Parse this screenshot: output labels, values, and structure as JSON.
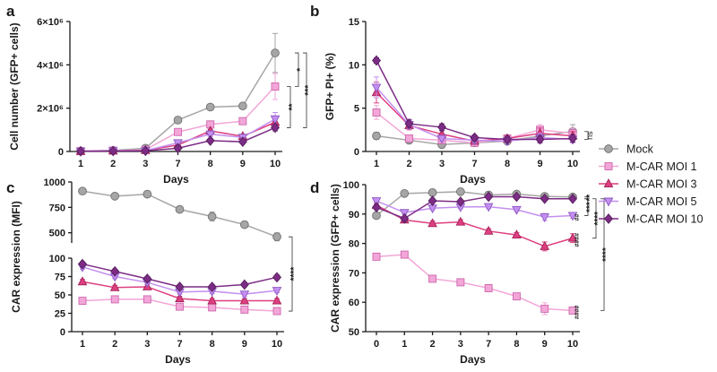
{
  "styles": {
    "Mock": {
      "fill": "#a6a6a6",
      "stroke": "#6f6f6f",
      "line": "#a6a6a6",
      "marker": "circle"
    },
    "M-CAR MOI 1": {
      "fill": "#f3a6d8",
      "stroke": "#cc66ad",
      "line": "#f3a6d8",
      "marker": "square"
    },
    "M-CAR MOI 3": {
      "fill": "#de3f7f",
      "stroke": "#a3235c",
      "line": "#de3f7f",
      "marker": "triangle-up"
    },
    "M-CAR MOI 5": {
      "fill": "#c38ff0",
      "stroke": "#8e58c2",
      "line": "#c38ff0",
      "marker": "triangle-down"
    },
    "M-CAR MOI 10": {
      "fill": "#7d2c86",
      "stroke": "#551d5c",
      "line": "#7d2c86",
      "marker": "diamond"
    }
  },
  "legend": {
    "entries": [
      {
        "label": "Mock",
        "series": "Mock"
      },
      {
        "label": "M-CAR MOI 1",
        "series": "M-CAR MOI 1"
      },
      {
        "label": "M-CAR MOI 3",
        "series": "M-CAR MOI 3"
      },
      {
        "label": "M-CAR MOI 5",
        "series": "M-CAR MOI 5"
      },
      {
        "label": "M-CAR MOI 10",
        "series": "M-CAR MOI 10"
      }
    ]
  },
  "chart_data": [
    {
      "panel": "a",
      "type": "line",
      "xlabel": "Days",
      "ylabel": "Cell number (GFP+ cells)",
      "categories": [
        "1",
        "2",
        "3",
        "7",
        "8",
        "9",
        "10"
      ],
      "ylim": [
        0,
        6000000
      ],
      "yticks": [
        0,
        2000000,
        4000000,
        6000000
      ],
      "ytick_labels": [
        "0",
        "2×10⁶",
        "4×10⁶",
        "6×10⁶"
      ],
      "series": [
        {
          "name": "Mock",
          "values": [
            20000,
            50000,
            150000,
            1450000,
            2050000,
            2100000,
            4550000
          ],
          "errors": [
            0,
            0,
            0,
            80000,
            60000,
            80000,
            900000
          ]
        },
        {
          "name": "M-CAR MOI 1",
          "values": [
            15000,
            40000,
            80000,
            900000,
            1250000,
            1400000,
            3000000
          ],
          "errors": [
            0,
            0,
            0,
            80000,
            80000,
            80000,
            600000
          ]
        },
        {
          "name": "M-CAR MOI 3",
          "values": [
            10000,
            30000,
            50000,
            300000,
            950000,
            700000,
            1350000
          ],
          "errors": [
            0,
            0,
            0,
            60000,
            80000,
            100000,
            200000
          ]
        },
        {
          "name": "M-CAR MOI 5",
          "values": [
            10000,
            30000,
            40000,
            400000,
            800000,
            650000,
            1500000
          ],
          "errors": [
            0,
            0,
            0,
            60000,
            100000,
            100000,
            300000
          ]
        },
        {
          "name": "M-CAR MOI 10",
          "values": [
            10000,
            20000,
            30000,
            150000,
            500000,
            450000,
            1100000
          ],
          "errors": [
            0,
            0,
            0,
            40000,
            60000,
            80000,
            150000
          ]
        }
      ],
      "annotations": [
        {
          "label": "**",
          "from_series": "M-CAR MOI 1",
          "to_series": "M-CAR MOI 10",
          "level": 0
        },
        {
          "label": "*",
          "from_series": "Mock",
          "to_series": "M-CAR MOI 1",
          "level": 1
        },
        {
          "label": "***",
          "from_series": "Mock",
          "to_series": "M-CAR MOI 10",
          "level": 2
        }
      ]
    },
    {
      "panel": "b",
      "type": "line",
      "xlabel": "Days",
      "ylabel": "GFP+ PI+ (%)",
      "categories": [
        "1",
        "2",
        "3",
        "7",
        "8",
        "9",
        "10"
      ],
      "ylim": [
        0,
        15
      ],
      "yticks": [
        0,
        5,
        10,
        15
      ],
      "ytick_labels": [
        "0",
        "5",
        "10",
        "15"
      ],
      "series": [
        {
          "name": "Mock",
          "values": [
            1.8,
            1.3,
            0.8,
            1.0,
            1.2,
            1.8,
            2.3
          ],
          "errors": [
            0.4,
            0.3,
            0.3,
            0.3,
            0.3,
            0.4,
            0.8
          ]
        },
        {
          "name": "M-CAR MOI 1",
          "values": [
            4.5,
            1.5,
            1.3,
            1.0,
            1.5,
            2.5,
            2.1
          ],
          "errors": [
            0.8,
            0.3,
            0.3,
            0.3,
            0.4,
            0.6,
            0.6
          ]
        },
        {
          "name": "M-CAR MOI 3",
          "values": [
            6.8,
            3.0,
            2.0,
            1.2,
            1.5,
            2.1,
            1.8
          ],
          "errors": [
            1.2,
            0.5,
            0.4,
            0.3,
            0.3,
            0.6,
            0.5
          ]
        },
        {
          "name": "M-CAR MOI 5",
          "values": [
            7.4,
            3.1,
            1.5,
            1.3,
            1.2,
            1.6,
            1.4
          ],
          "errors": [
            1.2,
            0.5,
            0.3,
            0.3,
            0.3,
            0.5,
            0.4
          ]
        },
        {
          "name": "M-CAR MOI 10",
          "values": [
            10.5,
            3.2,
            2.8,
            1.6,
            1.4,
            1.4,
            1.5
          ],
          "errors": [
            0.3,
            0.5,
            0.4,
            0.3,
            0.3,
            0.4,
            0.4
          ]
        }
      ],
      "annotations": [
        {
          "label": "ns",
          "from_series": "Mock",
          "to_series": "M-CAR MOI 5",
          "level": 0
        }
      ]
    },
    {
      "panel": "c",
      "type": "line",
      "xlabel": "Days",
      "ylabel": "CAR expression (MFI)",
      "categories": [
        "1",
        "2",
        "3",
        "7",
        "8",
        "9",
        "10"
      ],
      "broken_axis": {
        "lower": [
          0,
          100
        ],
        "upper": [
          400,
          1000
        ]
      },
      "yticks": [
        0,
        25,
        50,
        75,
        100,
        500,
        750,
        1000
      ],
      "ytick_labels": [
        "0",
        "25",
        "50",
        "75",
        "100",
        "500",
        "750",
        "1000"
      ],
      "series": [
        {
          "name": "Mock",
          "values": [
            910,
            860,
            880,
            730,
            660,
            580,
            460
          ],
          "errors": [
            15,
            15,
            15,
            30,
            45,
            30,
            40
          ]
        },
        {
          "name": "M-CAR MOI 1",
          "values": [
            42,
            44,
            44,
            34,
            33,
            30,
            28
          ],
          "errors": [
            2,
            2,
            2,
            3,
            3,
            3,
            3
          ]
        },
        {
          "name": "M-CAR MOI 3",
          "values": [
            68,
            60,
            61,
            45,
            42,
            42,
            42
          ],
          "errors": [
            3,
            3,
            3,
            3,
            3,
            3,
            3
          ]
        },
        {
          "name": "M-CAR MOI 5",
          "values": [
            88,
            75,
            67,
            54,
            55,
            51,
            56
          ],
          "errors": [
            3,
            3,
            3,
            3,
            3,
            3,
            3
          ]
        },
        {
          "name": "M-CAR MOI 10",
          "values": [
            92,
            82,
            72,
            61,
            61,
            64,
            74
          ],
          "errors": [
            3,
            3,
            3,
            3,
            3,
            3,
            3
          ]
        }
      ],
      "annotations": [
        {
          "label": "****",
          "from_series": "Mock",
          "to_series": "M-CAR MOI 1",
          "level": 0
        }
      ]
    },
    {
      "panel": "d",
      "type": "line",
      "xlabel": "Days",
      "ylabel": "CAR expression (GFP+ cells)",
      "categories": [
        "0",
        "1",
        "2",
        "3",
        "7",
        "8",
        "9",
        "10"
      ],
      "ylim": [
        50,
        100
      ],
      "yticks": [
        50,
        60,
        70,
        80,
        90,
        100
      ],
      "ytick_labels": [
        "50",
        "60",
        "70",
        "80",
        "90",
        "100"
      ],
      "series": [
        {
          "name": "Mock",
          "values": [
            89.5,
            97,
            97.3,
            97.6,
            96.5,
            96.8,
            96,
            95.8
          ],
          "errors": [
            0.5,
            0.5,
            0.5,
            0.5,
            0.5,
            0.5,
            0.5,
            0.5
          ]
        },
        {
          "name": "M-CAR MOI 1",
          "values": [
            75.5,
            76.2,
            68,
            66.8,
            64.8,
            62,
            57.8,
            57.2
          ],
          "errors": [
            0.6,
            0.6,
            0.8,
            0.8,
            0.8,
            0.8,
            2.0,
            1.0
          ]
        },
        {
          "name": "M-CAR MOI 3",
          "values": [
            93,
            88,
            86.8,
            87.3,
            84.2,
            82.9,
            79,
            81.8
          ],
          "errors": [
            0.8,
            0.8,
            0.8,
            0.8,
            0.8,
            0.8,
            1.5,
            1.5
          ]
        },
        {
          "name": "M-CAR MOI 5",
          "values": [
            94.5,
            90.5,
            92,
            92.4,
            92.5,
            91.5,
            89,
            89.5
          ],
          "errors": [
            0.6,
            0.6,
            0.6,
            0.6,
            0.6,
            0.6,
            1.2,
            1.0
          ]
        },
        {
          "name": "M-CAR MOI 10",
          "values": [
            92.3,
            88.5,
            94.5,
            94.2,
            95.9,
            95.9,
            95.2,
            95.2
          ],
          "errors": [
            0.5,
            0.5,
            0.5,
            0.5,
            0.5,
            0.5,
            0.5,
            0.5
          ]
        }
      ],
      "hash_labels": [
        {
          "series": "M-CAR MOI 5",
          "label": "##"
        },
        {
          "series": "M-CAR MOI 3",
          "label": "####"
        },
        {
          "series": "M-CAR MOI 1",
          "label": "####"
        }
      ],
      "annotations": [
        {
          "label": "**",
          "from_series": "Mock",
          "to_series": "M-CAR MOI 10",
          "level": 0
        },
        {
          "label": "***",
          "from_series": "M-CAR MOI 10",
          "to_series": "M-CAR MOI 5",
          "level": 0
        },
        {
          "label": "****",
          "from_series": "M-CAR MOI 10",
          "to_series": "M-CAR MOI 3",
          "level": 1
        },
        {
          "label": "****",
          "from_series": "M-CAR MOI 10",
          "to_series": "M-CAR MOI 1",
          "level": 2
        }
      ]
    }
  ]
}
